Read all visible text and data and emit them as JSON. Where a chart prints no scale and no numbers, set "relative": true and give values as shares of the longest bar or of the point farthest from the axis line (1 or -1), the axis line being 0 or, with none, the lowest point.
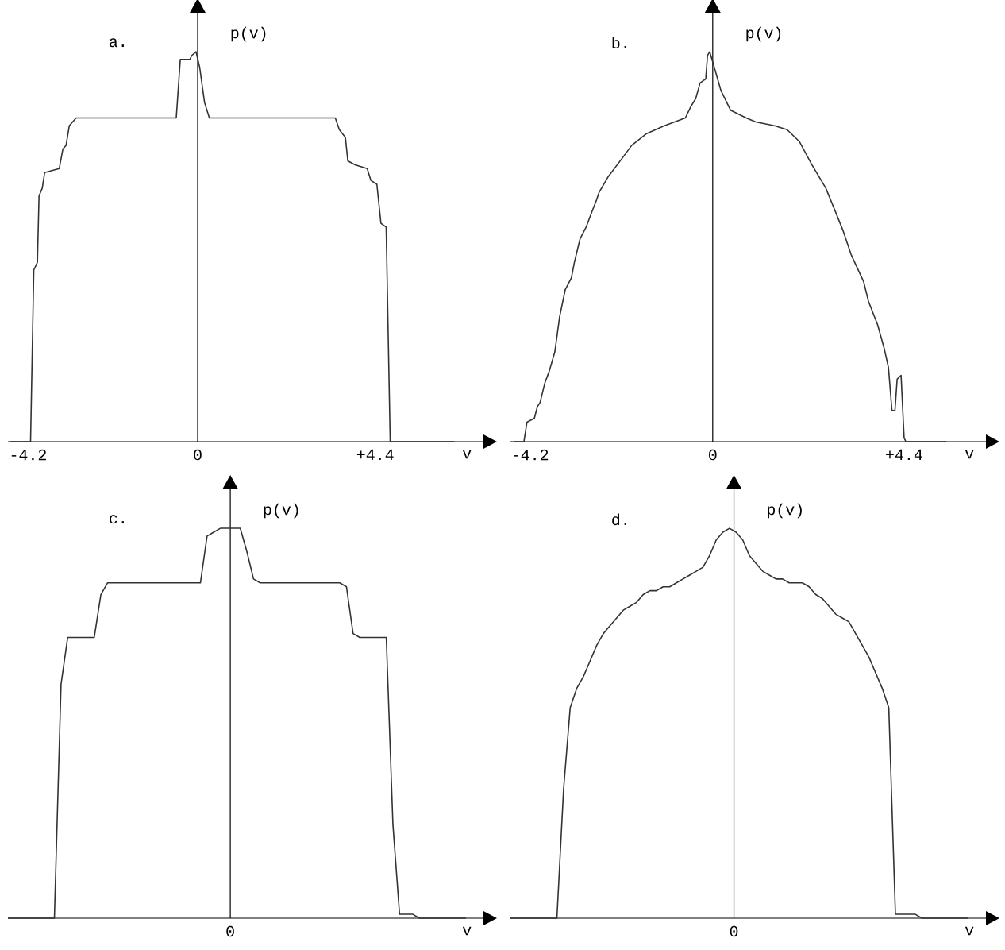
{
  "chart_data": [
    {
      "type": "line",
      "title": "a.",
      "xlabel": "v",
      "ylabel": "p(v)",
      "relative": true,
      "color": "#333333",
      "xlim": [
        -4.7,
        7.1
      ],
      "xticks": [
        -4.2,
        0,
        {
          "value": 4.4,
          "label": "+4.4"
        }
      ],
      "x": [
        -4.65,
        -4.14,
        -4.06,
        -3.97,
        -3.93,
        -3.85,
        -3.79,
        -3.43,
        -3.34,
        -3.26,
        -3.18,
        -3.01,
        -0.53,
        -0.43,
        -0.19,
        -0.15,
        -0.04,
        0.05,
        0.17,
        0.29,
        3.41,
        3.51,
        3.66,
        3.72,
        3.9,
        4.2,
        4.29,
        4.44,
        4.54,
        4.67,
        4.77,
        6.36
      ],
      "values": [
        0,
        0,
        0.44,
        0.46,
        0.63,
        0.65,
        0.69,
        0.7,
        0.75,
        0.76,
        0.81,
        0.83,
        0.83,
        0.98,
        0.98,
        0.99,
        1.0,
        0.96,
        0.87,
        0.83,
        0.83,
        0.8,
        0.78,
        0.72,
        0.71,
        0.7,
        0.67,
        0.66,
        0.56,
        0.55,
        0,
        0
      ]
    },
    {
      "type": "line",
      "title": "b.",
      "xlabel": "v",
      "ylabel": "p(v)",
      "relative": true,
      "color": "#333333",
      "xlim": [
        -4.65,
        6.3
      ],
      "xticks": [
        -4.2,
        0,
        {
          "value": 4.4,
          "label": "+4.4"
        }
      ],
      "x": [
        -4.58,
        -4.34,
        -4.27,
        -4.1,
        -4.03,
        -3.97,
        -3.86,
        -3.76,
        -3.63,
        -3.52,
        -3.39,
        -3.25,
        -3.18,
        -3.05,
        -2.91,
        -2.81,
        -2.67,
        -2.61,
        -2.4,
        -2.06,
        -1.86,
        -1.52,
        -1.11,
        -0.63,
        -0.5,
        -0.39,
        -0.29,
        -0.16,
        -0.12,
        -0.07,
        0.01,
        0.19,
        0.41,
        0.77,
        0.99,
        1.42,
        1.71,
        1.99,
        2.28,
        2.6,
        2.82,
        3.0,
        3.18,
        3.47,
        3.58,
        3.79,
        3.94,
        4.04,
        4.12,
        4.19,
        4.24,
        4.33,
        4.4,
        4.44,
        5.37
      ],
      "values": [
        0,
        0,
        0.05,
        0.06,
        0.09,
        0.1,
        0.15,
        0.18,
        0.23,
        0.32,
        0.39,
        0.42,
        0.46,
        0.52,
        0.55,
        0.58,
        0.62,
        0.64,
        0.68,
        0.73,
        0.76,
        0.79,
        0.81,
        0.83,
        0.86,
        0.88,
        0.92,
        0.93,
        0.99,
        1.0,
        0.97,
        0.9,
        0.85,
        0.83,
        0.82,
        0.81,
        0.8,
        0.77,
        0.71,
        0.65,
        0.59,
        0.54,
        0.48,
        0.41,
        0.36,
        0.3,
        0.24,
        0.19,
        0.08,
        0.08,
        0.16,
        0.17,
        0.01,
        0,
        0
      ]
    },
    {
      "type": "line",
      "title": "c.",
      "xlabel": "v",
      "ylabel": "p(v)",
      "relative": true,
      "color": "#333333",
      "annotations": [
        "0"
      ],
      "categories": [
        null,
        null,
        null,
        null,
        null,
        null,
        null,
        null,
        null,
        null,
        null,
        null,
        null,
        null,
        null,
        null,
        null,
        null,
        null,
        null,
        null,
        null,
        null,
        null,
        null,
        null,
        null,
        null,
        null,
        null,
        null,
        null,
        null,
        null,
        null,
        null,
        null,
        null,
        null,
        null,
        null,
        null,
        null,
        null,
        null,
        null,
        null,
        null,
        null,
        null,
        null,
        null,
        null,
        null,
        null,
        null,
        null,
        null,
        null,
        null,
        null,
        null,
        null,
        null,
        null,
        null,
        null,
        null,
        null,
        null
      ],
      "values": [
        0,
        0,
        0,
        0,
        0,
        0,
        0,
        0,
        0.6,
        0.72,
        0.72,
        0.72,
        0.72,
        0.72,
        0.83,
        0.86,
        0.86,
        0.86,
        0.86,
        0.86,
        0.86,
        0.86,
        0.86,
        0.86,
        0.86,
        0.86,
        0.86,
        0.86,
        0.86,
        0.86,
        0.98,
        0.99,
        1.0,
        1.0,
        1.0,
        1.0,
        0.94,
        0.87,
        0.86,
        0.86,
        0.86,
        0.86,
        0.86,
        0.86,
        0.86,
        0.86,
        0.86,
        0.86,
        0.86,
        0.86,
        0.86,
        0.85,
        0.73,
        0.72,
        0.72,
        0.72,
        0.72,
        0.72,
        0.24,
        0.01,
        0.01,
        0.01,
        0,
        0,
        0,
        0,
        0,
        0,
        0,
        0
      ]
    },
    {
      "type": "line",
      "title": "d.",
      "xlabel": "v",
      "ylabel": "p(v)",
      "relative": true,
      "color": "#333333",
      "annotations": [
        "0"
      ],
      "categories": [
        null,
        null,
        null,
        null,
        null,
        null,
        null,
        null,
        null,
        null,
        null,
        null,
        null,
        null,
        null,
        null,
        null,
        null,
        null,
        null,
        null,
        null,
        null,
        null,
        null,
        null,
        null,
        null,
        null,
        null,
        null,
        null,
        null,
        null,
        null,
        null,
        null,
        null,
        null,
        null,
        null,
        null,
        null,
        null,
        null,
        null,
        null,
        null,
        null,
        null,
        null,
        null,
        null,
        null,
        null,
        null,
        null,
        null,
        null,
        null,
        null,
        null,
        null,
        null,
        null,
        null,
        null,
        null,
        null,
        null
      ],
      "values": [
        0,
        0,
        0,
        0,
        0,
        0,
        0,
        0,
        0.33,
        0.54,
        0.59,
        0.62,
        0.66,
        0.7,
        0.73,
        0.75,
        0.77,
        0.79,
        0.8,
        0.81,
        0.83,
        0.84,
        0.84,
        0.85,
        0.85,
        0.86,
        0.87,
        0.88,
        0.89,
        0.9,
        0.93,
        0.97,
        0.99,
        1.0,
        0.99,
        0.97,
        0.93,
        0.91,
        0.89,
        0.88,
        0.87,
        0.87,
        0.86,
        0.86,
        0.86,
        0.85,
        0.83,
        0.82,
        0.8,
        0.78,
        0.77,
        0.76,
        0.73,
        0.7,
        0.67,
        0.63,
        0.59,
        0.54,
        0.01,
        0.01,
        0.01,
        0.01,
        0,
        0,
        0,
        0,
        0,
        0,
        0,
        0
      ]
    }
  ]
}
